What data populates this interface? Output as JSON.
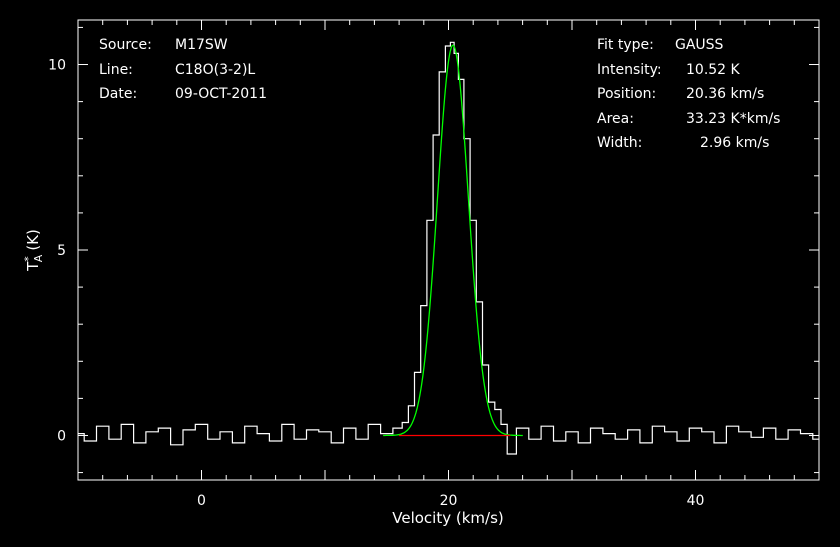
{
  "header_left": {
    "source_label": "Source:",
    "source_value": "M17SW",
    "line_label": "Line:",
    "line_value": "C18O(3-2)L",
    "date_label": "Date:",
    "date_value": "09-OCT-2011"
  },
  "header_right": {
    "fit_type_label": "Fit type:",
    "fit_type_value": "GAUSS",
    "intensity_label": "Intensity:",
    "intensity_value": "10.52 K",
    "position_label": "Position:",
    "position_value": "20.36 km/s",
    "area_label": "Area:",
    "area_value": "33.23 K*km/s",
    "width_label": "Width:",
    "width_value": "2.96 km/s"
  },
  "colors": {
    "spectrum": "#ffffff",
    "fit": "#00ff00",
    "baseline": "#ff0000",
    "axes": "#ffffff",
    "background": "#000000"
  },
  "chart_data": {
    "type": "line",
    "xlabel": "Velocity (km/s)",
    "ylabel": "T",
    "ylabel_sup": "*",
    "ylabel_sub": "A",
    "ylabel_unit": "(K)",
    "xlim": [
      -10,
      50
    ],
    "ylim": [
      -1.2,
      11.2
    ],
    "xticks": [
      0,
      20,
      40
    ],
    "xtick_labels": [
      "0",
      "20",
      "40"
    ],
    "yticks": [
      0,
      5,
      10
    ],
    "ytick_labels": [
      "0",
      "5",
      "10"
    ],
    "grid": false,
    "series": [
      {
        "style": "step",
        "color": "#ffffff",
        "x": [
          -10,
          -9,
          -8,
          -7,
          -6,
          -5,
          -4,
          -3,
          -2,
          -1,
          0,
          1,
          2,
          3,
          4,
          5,
          6,
          7,
          8,
          9,
          10,
          11,
          12,
          13,
          14,
          15,
          16,
          16.5,
          17,
          17.5,
          18,
          18.5,
          19,
          19.5,
          20,
          20.3,
          20.6,
          21,
          21.5,
          22,
          22.5,
          23,
          23.5,
          24,
          24.5,
          25,
          26,
          27,
          28,
          29,
          30,
          31,
          32,
          33,
          34,
          35,
          36,
          37,
          38,
          39,
          40,
          41,
          42,
          43,
          44,
          45,
          46,
          47,
          48,
          49,
          50
        ],
        "y": [
          0.05,
          -0.15,
          0.25,
          -0.1,
          0.3,
          -0.2,
          0.1,
          0.2,
          -0.25,
          0.15,
          0.3,
          -0.1,
          0.1,
          -0.2,
          0.25,
          0.05,
          -0.15,
          0.3,
          -0.1,
          0.15,
          0.1,
          -0.2,
          0.2,
          -0.1,
          0.3,
          0.05,
          0.2,
          0.35,
          0.8,
          1.7,
          3.5,
          5.8,
          8.1,
          9.8,
          10.5,
          10.6,
          10.3,
          9.6,
          8.0,
          5.8,
          3.6,
          1.9,
          0.9,
          0.7,
          0.3,
          -0.5,
          0.2,
          -0.1,
          0.25,
          -0.15,
          0.1,
          -0.2,
          0.2,
          0.05,
          -0.1,
          0.15,
          -0.2,
          0.25,
          0.1,
          -0.15,
          0.2,
          0.1,
          -0.2,
          0.25,
          0.1,
          -0.05,
          0.2,
          -0.1,
          0.15,
          0.05,
          -0.1
        ]
      },
      {
        "style": "gaussian",
        "color": "#00ff00",
        "amplitude": 10.52,
        "center": 20.36,
        "fwhm": 2.96
      },
      {
        "style": "line",
        "color": "#ff0000",
        "x": [
          16,
          25
        ],
        "y": [
          0,
          0
        ]
      }
    ]
  }
}
